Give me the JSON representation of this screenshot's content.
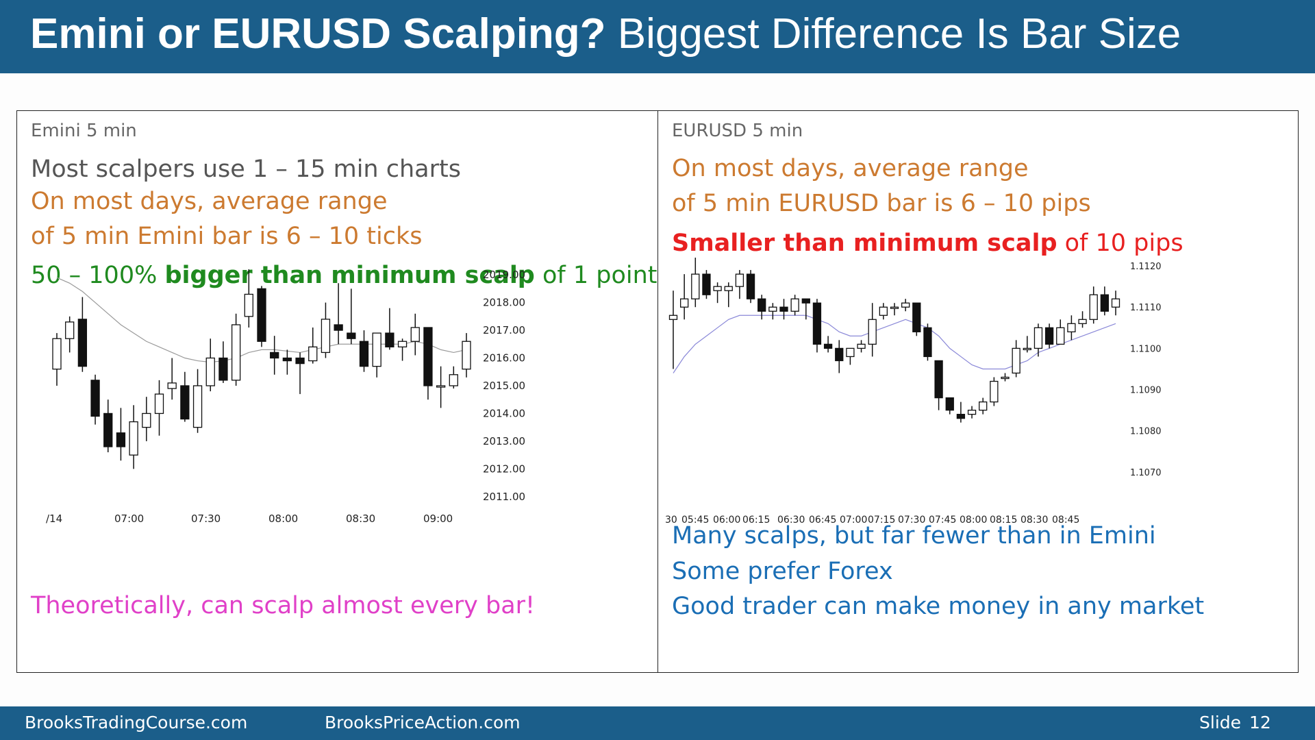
{
  "title": {
    "bold": "Emini or EURUSD Scalping?",
    "normal": " Biggest Difference Is Bar Size"
  },
  "left": {
    "label": "Emini 5 min",
    "line1": "Most scalpers use 1 – 15 min charts",
    "line2": "On most days, average range",
    "line3": "of 5 min Emini bar is 6 – 10 ticks",
    "line4_a": "50 – 100% ",
    "line4_b": "bigger than minimum scalp",
    "line4_c": " of 1 point",
    "bottom": "Theoretically, can scalp almost every bar!"
  },
  "right": {
    "label": "EURUSD 5 min",
    "line1": "On most days, average range",
    "line2": "of 5 min EURUSD bar is 6 – 10 pips",
    "line3_a": "Smaller than minimum scalp",
    "line3_b": " of 10 pips",
    "bottom1": "Many scalps, but far fewer than in Emini",
    "bottom2": "Some prefer Forex",
    "bottom3": "Good trader can make money in any market"
  },
  "footer": {
    "site1": "BrooksTradingCourse.com",
    "site2": "BrooksPriceAction.com",
    "slide_label": "Slide",
    "slide_num": "12"
  },
  "colors": {
    "header": "#1b5e8a",
    "orange": "#cc7a30",
    "green": "#1f8a1f",
    "magenta": "#e040c8",
    "blue": "#1a6eb5",
    "red": "#e82020"
  },
  "chart_data": [
    {
      "type": "candlestick",
      "name": "Emini 5 min",
      "y_ticks": [
        "2019.00",
        "2018.00",
        "2017.00",
        "2016.00",
        "2015.00",
        "2014.00",
        "2013.00",
        "2012.00",
        "2011.00"
      ],
      "x_ticks": [
        "/14",
        "07:00",
        "07:30",
        "08:00",
        "08:30",
        "09:00"
      ],
      "ylim": [
        2010.6,
        2019.3
      ],
      "bars": [
        [
          2015.6,
          2016.7,
          2015.0,
          2016.9
        ],
        [
          2016.7,
          2017.3,
          2016.2,
          2017.5
        ],
        [
          2017.4,
          2015.7,
          2015.5,
          2018.2
        ],
        [
          2015.2,
          2013.9,
          2013.6,
          2015.4
        ],
        [
          2014.0,
          2012.8,
          2012.6,
          2014.5
        ],
        [
          2013.3,
          2012.8,
          2012.3,
          2014.2
        ],
        [
          2012.5,
          2013.7,
          2012.0,
          2014.3
        ],
        [
          2013.5,
          2014.0,
          2013.0,
          2014.6
        ],
        [
          2014.0,
          2014.7,
          2013.2,
          2015.2
        ],
        [
          2014.9,
          2015.1,
          2014.5,
          2016.0
        ],
        [
          2015.0,
          2013.8,
          2013.7,
          2015.5
        ],
        [
          2013.5,
          2015.0,
          2013.3,
          2015.6
        ],
        [
          2015.0,
          2016.0,
          2014.8,
          2016.7
        ],
        [
          2016.0,
          2015.2,
          2015.1,
          2016.6
        ],
        [
          2015.2,
          2017.2,
          2015.0,
          2017.6
        ],
        [
          2017.5,
          2018.3,
          2017.1,
          2019.2
        ],
        [
          2018.5,
          2016.6,
          2016.4,
          2018.6
        ],
        [
          2016.2,
          2016.0,
          2015.4,
          2016.8
        ],
        [
          2016.0,
          2015.9,
          2015.4,
          2016.3
        ],
        [
          2016.0,
          2015.8,
          2014.7,
          2016.2
        ],
        [
          2015.9,
          2016.4,
          2015.8,
          2017.1
        ],
        [
          2016.2,
          2017.4,
          2016.0,
          2018.0
        ],
        [
          2017.2,
          2017.0,
          2016.5,
          2018.7
        ],
        [
          2016.9,
          2016.7,
          2016.5,
          2018.5
        ],
        [
          2016.6,
          2015.7,
          2015.5,
          2017.0
        ],
        [
          2015.7,
          2016.9,
          2015.3,
          2016.9
        ],
        [
          2016.9,
          2016.4,
          2016.3,
          2017.8
        ],
        [
          2016.4,
          2016.6,
          2015.9,
          2016.7
        ],
        [
          2016.6,
          2017.1,
          2016.1,
          2017.6
        ],
        [
          2017.1,
          2015.0,
          2014.5,
          2017.1
        ],
        [
          2015.0,
          2015.0,
          2014.2,
          2015.7
        ],
        [
          2015.0,
          2015.4,
          2014.9,
          2015.7
        ],
        [
          2015.6,
          2016.6,
          2015.3,
          2016.9
        ]
      ],
      "ma": [
        2018.9,
        2018.7,
        2018.4,
        2018.0,
        2017.6,
        2017.2,
        2016.9,
        2016.6,
        2016.4,
        2016.2,
        2016.0,
        2015.9,
        2015.85,
        2015.9,
        2016.0,
        2016.2,
        2016.3,
        2016.3,
        2016.25,
        2016.2,
        2016.3,
        2016.4,
        2016.5,
        2016.5,
        2016.5,
        2016.5,
        2016.5,
        2016.5,
        2016.6,
        2016.5,
        2016.3,
        2016.2,
        2016.3
      ]
    },
    {
      "type": "candlestick",
      "name": "EURUSD 5 min",
      "y_ticks": [
        "1.1120",
        "1.1110",
        "1.1100",
        "1.1090",
        "1.1080",
        "1.1070"
      ],
      "x_ticks": [
        "30",
        "05:45",
        "06:00",
        "06:15",
        "06:30",
        "06:45",
        "07:00",
        "07:15",
        "07:30",
        "07:45",
        "08:00",
        "08:15",
        "08:30",
        "08:45"
      ],
      "ylim": [
        1.1062,
        1.1124
      ],
      "bars": [
        [
          1.1107,
          1.1108,
          1.1095,
          1.1114
        ],
        [
          1.111,
          1.1112,
          1.1107,
          1.1118
        ],
        [
          1.1112,
          1.1118,
          1.111,
          1.1122
        ],
        [
          1.1118,
          1.1113,
          1.1112,
          1.1119
        ],
        [
          1.1114,
          1.1115,
          1.1111,
          1.1116
        ],
        [
          1.1114,
          1.1115,
          1.111,
          1.1116
        ],
        [
          1.1115,
          1.1118,
          1.1112,
          1.1119
        ],
        [
          1.1118,
          1.1112,
          1.1111,
          1.1119
        ],
        [
          1.1112,
          1.1109,
          1.1107,
          1.1113
        ],
        [
          1.1109,
          1.111,
          1.1107,
          1.1111
        ],
        [
          1.111,
          1.1109,
          1.1107,
          1.1112
        ],
        [
          1.1109,
          1.1112,
          1.1108,
          1.1113
        ],
        [
          1.1112,
          1.1111,
          1.1107,
          1.1112
        ],
        [
          1.1111,
          1.1101,
          1.1099,
          1.1112
        ],
        [
          1.1101,
          1.11,
          1.1099,
          1.1103
        ],
        [
          1.11,
          1.1097,
          1.1094,
          1.1102
        ],
        [
          1.1098,
          1.11,
          1.1096,
          1.11
        ],
        [
          1.11,
          1.1101,
          1.1099,
          1.1102
        ],
        [
          1.1101,
          1.1107,
          1.1098,
          1.1111
        ],
        [
          1.1108,
          1.111,
          1.1107,
          1.1111
        ],
        [
          1.111,
          1.111,
          1.1108,
          1.1111
        ],
        [
          1.111,
          1.1111,
          1.1109,
          1.1112
        ],
        [
          1.1111,
          1.1104,
          1.1103,
          1.1111
        ],
        [
          1.1105,
          1.1098,
          1.1097,
          1.1106
        ],
        [
          1.1097,
          1.1088,
          1.1085,
          1.1097
        ],
        [
          1.1088,
          1.1085,
          1.1084,
          1.1088
        ],
        [
          1.1084,
          1.1083,
          1.1082,
          1.1087
        ],
        [
          1.1084,
          1.1085,
          1.1083,
          1.1086
        ],
        [
          1.1085,
          1.1087,
          1.1084,
          1.1088
        ],
        [
          1.1087,
          1.1092,
          1.1086,
          1.1093
        ],
        [
          1.1093,
          1.1093,
          1.1092,
          1.1094
        ],
        [
          1.1094,
          1.11,
          1.1093,
          1.1102
        ],
        [
          1.11,
          1.11,
          1.1099,
          1.1103
        ],
        [
          1.11,
          1.1105,
          1.1098,
          1.1106
        ],
        [
          1.1105,
          1.1101,
          1.11,
          1.1106
        ],
        [
          1.1101,
          1.1105,
          1.1101,
          1.1107
        ],
        [
          1.1104,
          1.1106,
          1.1102,
          1.1108
        ],
        [
          1.1106,
          1.1107,
          1.1105,
          1.1109
        ],
        [
          1.1107,
          1.1113,
          1.1106,
          1.1115
        ],
        [
          1.1113,
          1.1109,
          1.1108,
          1.1115
        ],
        [
          1.111,
          1.1112,
          1.1108,
          1.1114
        ]
      ],
      "ma": [
        1.1094,
        1.1098,
        1.1101,
        1.1103,
        1.1105,
        1.1107,
        1.1108,
        1.1108,
        1.1108,
        1.1108,
        1.1108,
        1.1108,
        1.1108,
        1.1107,
        1.1106,
        1.1104,
        1.1103,
        1.1103,
        1.1104,
        1.1105,
        1.1106,
        1.1107,
        1.1106,
        1.1105,
        1.1103,
        1.11,
        1.1098,
        1.1096,
        1.1095,
        1.1095,
        1.1095,
        1.1096,
        1.1097,
        1.1099,
        1.11,
        1.1101,
        1.1102,
        1.1103,
        1.1104,
        1.1105,
        1.1106
      ]
    }
  ]
}
